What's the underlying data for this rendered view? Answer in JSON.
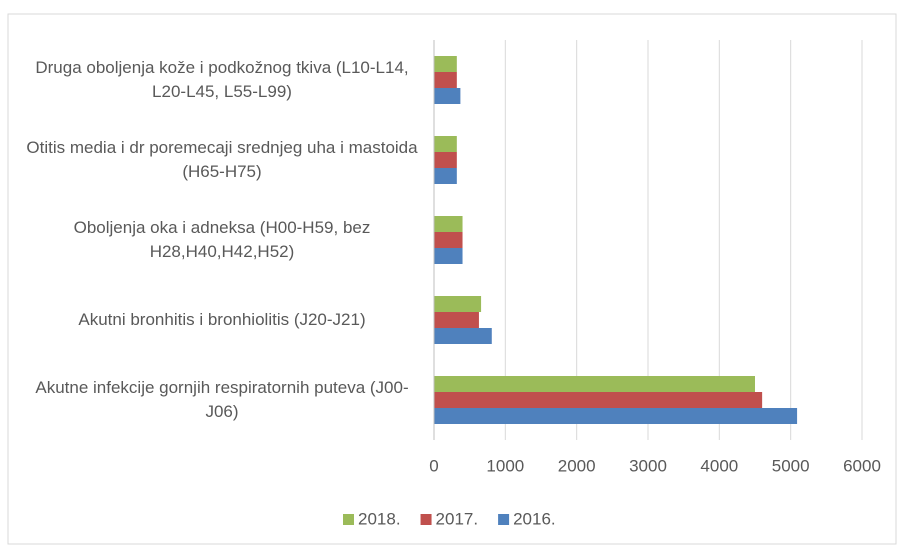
{
  "chart_data": {
    "type": "hbar",
    "categories": [
      "Druga oboljenja kože i podkožnog tkiva (L10-L14, L20-L45, L55-L99)",
      "Otitis media i dr poremecaji srednjeg uha i mastoida (H65-H75)",
      "Oboljenja oka i adneksa (H00-H59, bez H28,H40,H42,H52)",
      "Akutni bronhitis i bronhiolitis (J20-J21)",
      "Akutne infekcije gornjih respiratornih puteva (J00-J06)"
    ],
    "series": [
      {
        "name": "2018.",
        "color": "#9bbb59",
        "values": [
          320,
          320,
          400,
          660,
          4500
        ]
      },
      {
        "name": "2017.",
        "color": "#c0504d",
        "values": [
          320,
          320,
          400,
          630,
          4600
        ]
      },
      {
        "name": "2016.",
        "color": "#4f81bd",
        "values": [
          370,
          320,
          400,
          810,
          5090
        ]
      }
    ],
    "xlim": [
      0,
      6000
    ],
    "xticks": [
      0,
      1000,
      2000,
      3000,
      4000,
      5000,
      6000
    ],
    "grid": true,
    "legend": "bottom"
  }
}
